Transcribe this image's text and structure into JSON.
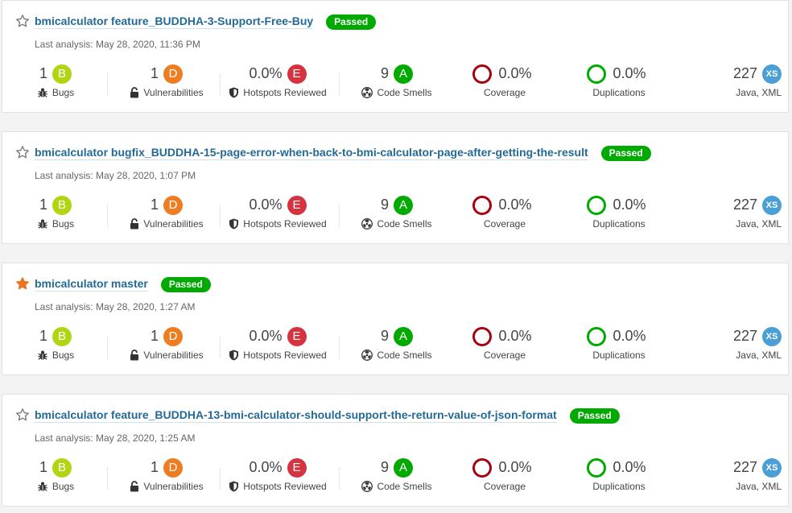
{
  "colors": {
    "rating_A": "#00aa00",
    "rating_B": "#b0d513",
    "rating_D": "#ed7d20",
    "rating_E": "#d4333f",
    "coverage_ring": "#a4030f",
    "duplication_ring": "#00aa00",
    "passed": "#00aa00",
    "size_badge": "#4b9fd5",
    "star_favorite": "#eb7322",
    "star_empty": "#777777"
  },
  "labels": {
    "bugs": "Bugs",
    "vulnerabilities": "Vulnerabilities",
    "hotspots": "Hotspots Reviewed",
    "code_smells": "Code Smells",
    "coverage": "Coverage",
    "duplications": "Duplications"
  },
  "projects": [
    {
      "name": "bmicalculator feature_BUDDHA-3-Support-Free-Buy",
      "favorite": false,
      "status": "Passed",
      "last_analysis": "Last analysis: May 28, 2020, 11:36 PM",
      "bugs": "1",
      "bugs_rating": "B",
      "vulnerabilities": "1",
      "vulnerabilities_rating": "D",
      "hotspots": "0.0%",
      "hotspots_rating": "E",
      "code_smells": "9",
      "code_smells_rating": "A",
      "coverage": "0.0%",
      "duplications": "0.0%",
      "lines": "227",
      "size": "XS",
      "languages": "Java, XML"
    },
    {
      "name": "bmicalculator bugfix_BUDDHA-15-page-error-when-back-to-bmi-calculator-page-after-getting-the-result",
      "favorite": false,
      "status": "Passed",
      "last_analysis": "Last analysis: May 28, 2020, 1:07 PM",
      "bugs": "1",
      "bugs_rating": "B",
      "vulnerabilities": "1",
      "vulnerabilities_rating": "D",
      "hotspots": "0.0%",
      "hotspots_rating": "E",
      "code_smells": "9",
      "code_smells_rating": "A",
      "coverage": "0.0%",
      "duplications": "0.0%",
      "lines": "227",
      "size": "XS",
      "languages": "Java, XML"
    },
    {
      "name": "bmicalculator master",
      "favorite": true,
      "status": "Passed",
      "last_analysis": "Last analysis: May 28, 2020, 1:27 AM",
      "bugs": "1",
      "bugs_rating": "B",
      "vulnerabilities": "1",
      "vulnerabilities_rating": "D",
      "hotspots": "0.0%",
      "hotspots_rating": "E",
      "code_smells": "9",
      "code_smells_rating": "A",
      "coverage": "0.0%",
      "duplications": "0.0%",
      "lines": "227",
      "size": "XS",
      "languages": "Java, XML"
    },
    {
      "name": "bmicalculator feature_BUDDHA-13-bmi-calculator-should-support-the-return-value-of-json-format",
      "favorite": false,
      "status": "Passed",
      "last_analysis": "Last analysis: May 28, 2020, 1:25 AM",
      "bugs": "1",
      "bugs_rating": "B",
      "vulnerabilities": "1",
      "vulnerabilities_rating": "D",
      "hotspots": "0.0%",
      "hotspots_rating": "E",
      "code_smells": "9",
      "code_smells_rating": "A",
      "coverage": "0.0%",
      "duplications": "0.0%",
      "lines": "227",
      "size": "XS",
      "languages": "Java, XML"
    }
  ]
}
